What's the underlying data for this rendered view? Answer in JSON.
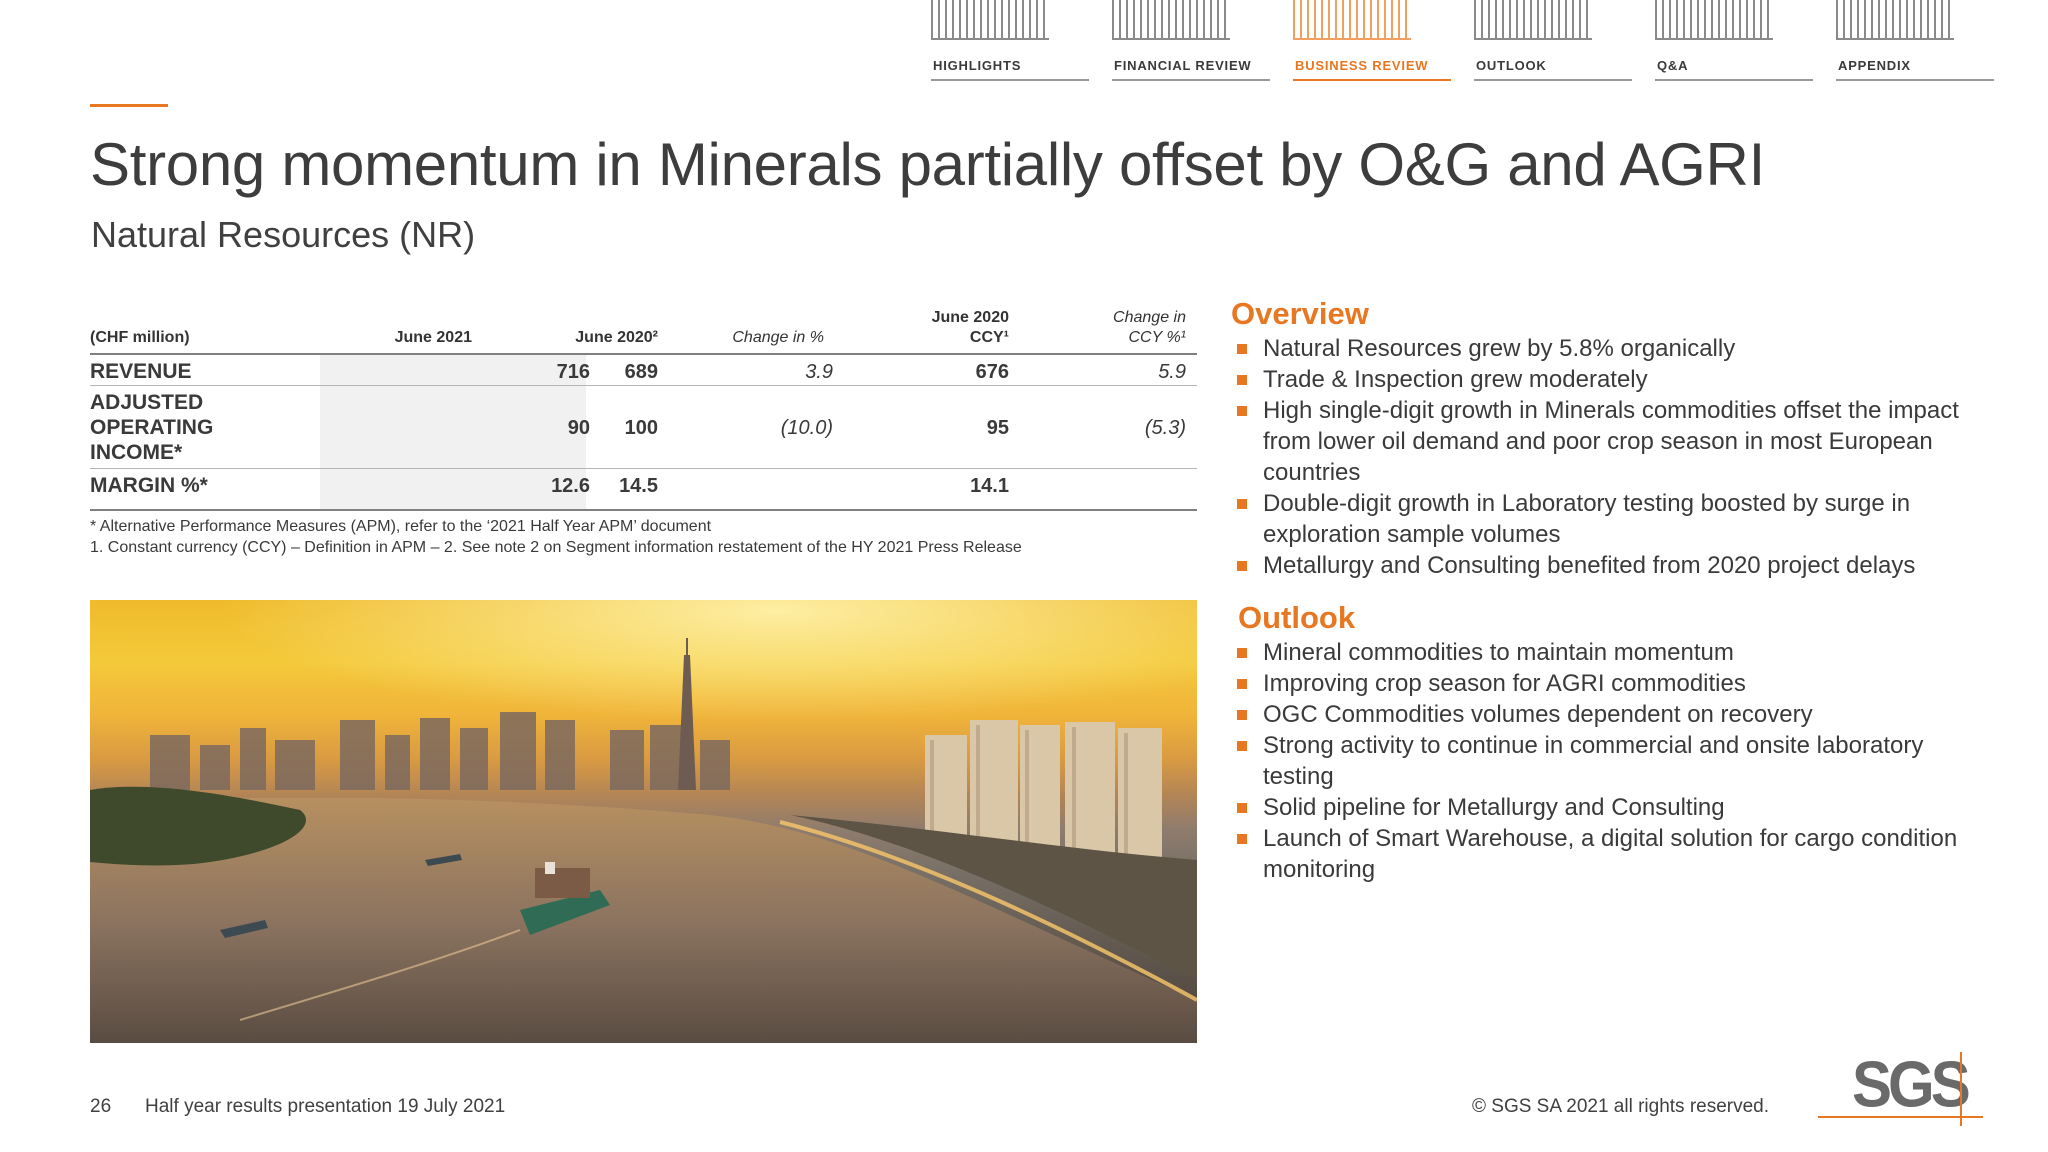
{
  "nav": {
    "tabs": [
      {
        "label": "HIGHLIGHTS"
      },
      {
        "label": "FINANCIAL REVIEW"
      },
      {
        "label": "BUSINESS REVIEW"
      },
      {
        "label": "OUTLOOK"
      },
      {
        "label": "Q&A"
      },
      {
        "label": "APPENDIX"
      }
    ],
    "active_tab": "BUSINESS REVIEW",
    "accent_color": "#e87722"
  },
  "title": "Strong momentum in Minerals partially offset by O&G and AGRI",
  "subtitle": "Natural Resources (NR)",
  "table": {
    "unit_label": "(CHF million)",
    "columns": [
      {
        "line1": "",
        "line2": "June 2021"
      },
      {
        "line1": "",
        "line2": "June 2020²"
      },
      {
        "line1": "",
        "line2": "Change in %"
      },
      {
        "line1": "June 2020",
        "line2": "CCY¹"
      },
      {
        "line1": "Change in",
        "line2": "CCY %¹"
      }
    ],
    "rows": [
      {
        "label": "REVENUE",
        "values": [
          "716",
          "689",
          "3.9",
          "676",
          "5.9"
        ]
      },
      {
        "label": "ADJUSTED OPERATING INCOME*",
        "label_lines": [
          "ADJUSTED",
          "OPERATING",
          "INCOME*"
        ],
        "values": [
          "90",
          "100",
          "(10.0)",
          "95",
          "(5.3)"
        ]
      },
      {
        "label": "MARGIN %*",
        "values": [
          "12.6",
          "14.5",
          "",
          "14.1",
          ""
        ]
      }
    ],
    "footnotes": [
      "*  Alternative Performance Measures (APM), refer to the ‘2021 Half Year APM’ document",
      "1. Constant currency (CCY) – Definition in APM – 2. See note 2 on Segment information restatement of the HY 2021 Press Release"
    ]
  },
  "image": {
    "description_icon": "city-river-sunset-photo"
  },
  "overview": {
    "heading": "Overview",
    "bullets": [
      "Natural Resources grew by 5.8% organically",
      "Trade & Inspection grew moderately",
      "High single-digit growth in Minerals commodities offset the impact from lower oil demand and poor crop season in most European countries",
      "Double-digit growth in Laboratory testing boosted by surge in exploration sample volumes",
      "Metallurgy and Consulting benefited from 2020 project delays"
    ]
  },
  "outlook": {
    "heading": "Outlook",
    "bullets": [
      "Mineral commodities to maintain momentum",
      "Improving crop season for AGRI commodities",
      "OGC Commodities volumes dependent on recovery",
      "Strong activity to continue in commercial and onsite laboratory testing",
      "Solid pipeline for Metallurgy and Consulting",
      "Launch of Smart Warehouse, a digital solution for cargo condition monitoring"
    ]
  },
  "footer": {
    "page_number": "26",
    "presentation": "Half year results presentation 19 July 2021",
    "copyright": "© SGS SA 2021 all rights reserved.",
    "logo_text": "SGS"
  }
}
